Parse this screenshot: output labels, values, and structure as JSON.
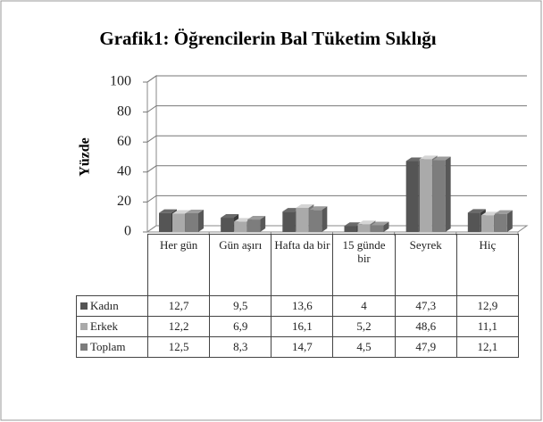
{
  "chart_data": {
    "type": "bar3d",
    "title": "Grafik1: Öğrencilerin Bal Tüketim Sıklığı",
    "y_label": "Yüzde",
    "categories": [
      "Her gün",
      "Gün aşırı",
      "Hafta da bir",
      "15 günde bir",
      "Seyrek",
      "Hiç"
    ],
    "series": [
      {
        "name": "Kadın",
        "color": "#555555",
        "values": [
          12.7,
          9.5,
          13.6,
          4,
          47.3,
          12.9
        ],
        "value_labels": [
          "12,7",
          "9,5",
          "13,6",
          "4",
          "47,3",
          "12,9"
        ]
      },
      {
        "name": "Erkek",
        "color": "#aaaaaa",
        "values": [
          12.2,
          6.9,
          16.1,
          5.2,
          48.6,
          11.1
        ],
        "value_labels": [
          "12,2",
          "6,9",
          "16,1",
          "5,2",
          "48,6",
          "11,1"
        ]
      },
      {
        "name": "Toplam",
        "color": "#7d7d7d",
        "values": [
          12.5,
          8.3,
          14.7,
          4.5,
          47.9,
          12.1
        ],
        "value_labels": [
          "12,5",
          "8,3",
          "14,7",
          "4,5",
          "47,9",
          "12,1"
        ]
      }
    ],
    "ylim": [
      0,
      100
    ],
    "yticks": [
      0,
      20,
      40,
      60,
      80,
      100
    ],
    "grid": true
  }
}
